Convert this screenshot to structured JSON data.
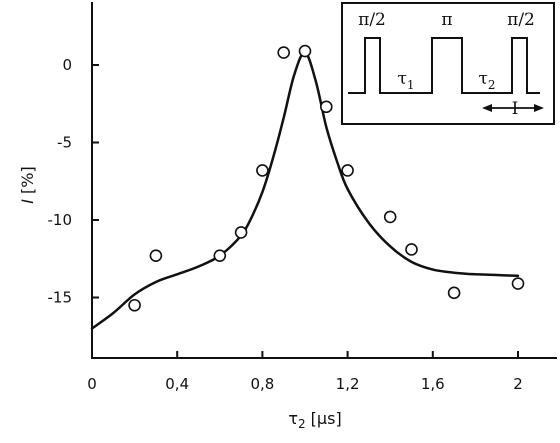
{
  "chart_data": {
    "type": "scatter",
    "xlabel": "τ₂ [µs]",
    "xlabel_main": "τ",
    "xlabel_sub": "2",
    "xlabel_unit": " [µs]",
    "ylabel": "I [%]",
    "ylabel_var": "I",
    "ylabel_unit": " [%]",
    "xlim": [
      0,
      2.05
    ],
    "ylim": [
      -18.5,
      3.5
    ],
    "x_ticks": [
      0,
      0.4,
      0.8,
      1.2,
      1.6,
      2
    ],
    "x_tick_labels": [
      "0",
      "0,4",
      "0,8",
      "1,2",
      "1,6",
      "2"
    ],
    "y_ticks": [
      0,
      -5,
      -10,
      -15
    ],
    "y_tick_labels": [
      "0",
      "-5",
      "-10",
      "-15"
    ],
    "grid": false,
    "series": [
      {
        "kind": "markers",
        "marker": "open-circle",
        "x": [
          0.2,
          0.3,
          0.6,
          0.7,
          0.8,
          0.9,
          1.0,
          1.1,
          1.2,
          1.4,
          1.5,
          1.7,
          2.0
        ],
        "y": [
          -15.5,
          -12.3,
          -12.3,
          -10.8,
          -6.8,
          0.8,
          0.9,
          -2.7,
          -6.8,
          -9.8,
          -11.9,
          -14.7,
          -14.1
        ]
      },
      {
        "kind": "line",
        "x": [
          0,
          0.1,
          0.2,
          0.3,
          0.4,
          0.5,
          0.6,
          0.7,
          0.75,
          0.8,
          0.85,
          0.9,
          0.95,
          1.0,
          1.05,
          1.1,
          1.15,
          1.2,
          1.3,
          1.4,
          1.5,
          1.6,
          1.7,
          1.8,
          1.9,
          2.0
        ],
        "y": [
          -17.0,
          -16.0,
          -14.8,
          -14.0,
          -13.5,
          -13.0,
          -12.3,
          -11.0,
          -9.8,
          -8.2,
          -6.0,
          -3.4,
          -0.6,
          0.8,
          -1.0,
          -4.0,
          -6.2,
          -8.0,
          -10.2,
          -11.7,
          -12.7,
          -13.2,
          -13.4,
          -13.5,
          -13.55,
          -13.6
        ]
      }
    ],
    "inset": {
      "pulse_labels": [
        "π/2",
        "π",
        "π/2"
      ],
      "delay_labels": [
        {
          "main": "τ",
          "sub": "1"
        },
        {
          "main": "τ",
          "sub": "2"
        }
      ],
      "marker_label": "I"
    }
  }
}
